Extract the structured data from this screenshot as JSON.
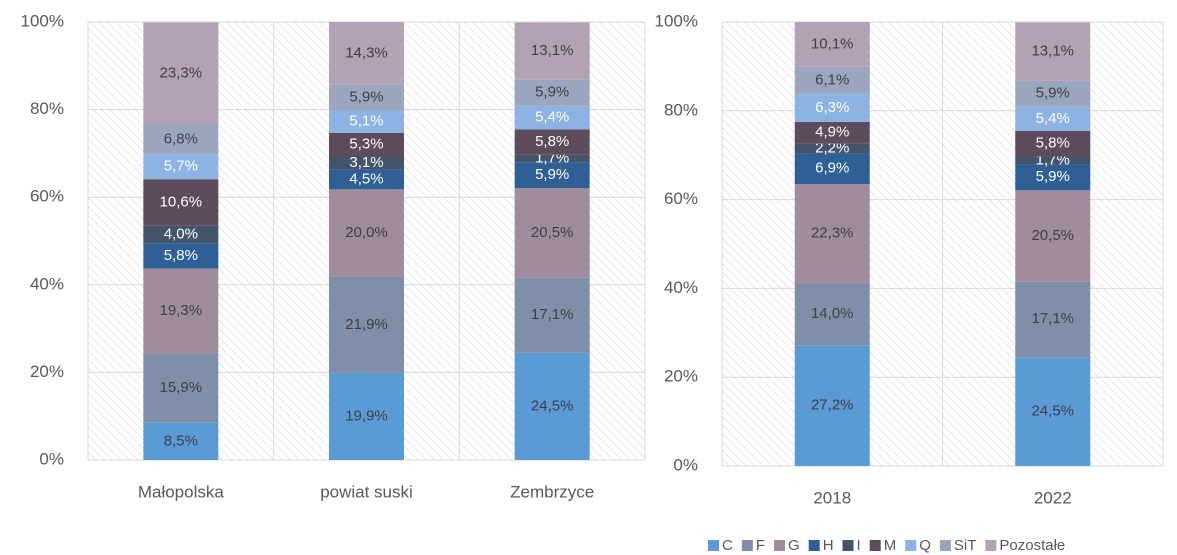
{
  "legend": {
    "position": "bottom-right",
    "items": [
      {
        "name": "C",
        "color": "#5b9bd5",
        "text_color": "#404040"
      },
      {
        "name": "F",
        "color": "#7f8fa9",
        "text_color": "#404040"
      },
      {
        "name": "G",
        "color": "#a08c9c",
        "text_color": "#404040"
      },
      {
        "name": "H",
        "color": "#2e6096",
        "text_color": "#ffffff"
      },
      {
        "name": "I",
        "color": "#44546a",
        "text_color": "#ffffff"
      },
      {
        "name": "M",
        "color": "#5e4b5c",
        "text_color": "#ffffff"
      },
      {
        "name": "Q",
        "color": "#8db3e2",
        "text_color": "#ffffff"
      },
      {
        "name": "SiT",
        "color": "#9aa6bd",
        "text_color": "#404040"
      },
      {
        "name": "Pozostałe",
        "color": "#b3a2b4",
        "text_color": "#404040"
      }
    ]
  },
  "chart_data": [
    {
      "type": "stacked_bar",
      "categories": [
        "Małopolska",
        "powiat suski",
        "Zembrzyce"
      ],
      "ylim": [
        0,
        100
      ],
      "yticks": [
        {
          "value": 0,
          "label": "0%"
        },
        {
          "value": 20,
          "label": "20%"
        },
        {
          "value": 40,
          "label": "40%"
        },
        {
          "value": 60,
          "label": "60%"
        },
        {
          "value": 80,
          "label": "80%"
        },
        {
          "value": 100,
          "label": "100%"
        }
      ],
      "grid": true,
      "series": [
        {
          "values": [
            8.5,
            19.9,
            24.5
          ],
          "value_labels": [
            "8,5%",
            "19,9%",
            "24,5%"
          ]
        },
        {
          "values": [
            15.9,
            21.9,
            17.1
          ],
          "value_labels": [
            "15,9%",
            "21,9%",
            "17,1%"
          ]
        },
        {
          "values": [
            19.3,
            20.0,
            20.5
          ],
          "value_labels": [
            "19,3%",
            "20,0%",
            "20,5%"
          ]
        },
        {
          "values": [
            5.8,
            4.5,
            5.9
          ],
          "value_labels": [
            "5,8%",
            "4,5%",
            "5,9%"
          ]
        },
        {
          "values": [
            4.0,
            3.1,
            1.7
          ],
          "value_labels": [
            "4,0%",
            "3,1%",
            "1,7%"
          ]
        },
        {
          "values": [
            10.6,
            5.3,
            5.8
          ],
          "value_labels": [
            "10,6%",
            "5,3%",
            "5,8%"
          ]
        },
        {
          "values": [
            5.7,
            5.1,
            5.4
          ],
          "value_labels": [
            "5,7%",
            "5,1%",
            "5,4%"
          ]
        },
        {
          "values": [
            6.8,
            5.9,
            5.9
          ],
          "value_labels": [
            "6,8%",
            "5,9%",
            "5,9%"
          ]
        },
        {
          "values": [
            23.3,
            14.3,
            13.1
          ],
          "value_labels": [
            "23,3%",
            "14,3%",
            "13,1%"
          ]
        }
      ]
    },
    {
      "type": "stacked_bar",
      "categories": [
        "2018",
        "2022"
      ],
      "ylim": [
        0,
        100
      ],
      "yticks": [
        {
          "value": 0,
          "label": "0%"
        },
        {
          "value": 20,
          "label": "20%"
        },
        {
          "value": 40,
          "label": "40%"
        },
        {
          "value": 60,
          "label": "60%"
        },
        {
          "value": 80,
          "label": "80%"
        },
        {
          "value": 100,
          "label": "100%"
        }
      ],
      "grid": true,
      "series": [
        {
          "values": [
            27.2,
            24.5
          ],
          "value_labels": [
            "27,2%",
            "24,5%"
          ]
        },
        {
          "values": [
            14.0,
            17.1
          ],
          "value_labels": [
            "14,0%",
            "17,1%"
          ]
        },
        {
          "values": [
            22.3,
            20.5
          ],
          "value_labels": [
            "22,3%",
            "20,5%"
          ]
        },
        {
          "values": [
            6.9,
            5.9
          ],
          "value_labels": [
            "6,9%",
            "5,9%"
          ]
        },
        {
          "values": [
            2.2,
            1.7
          ],
          "value_labels": [
            "2,2%",
            "1,7%"
          ]
        },
        {
          "values": [
            4.9,
            5.8
          ],
          "value_labels": [
            "4,9%",
            "5,8%"
          ]
        },
        {
          "values": [
            6.3,
            5.4
          ],
          "value_labels": [
            "6,3%",
            "5,4%"
          ]
        },
        {
          "values": [
            6.1,
            5.9
          ],
          "value_labels": [
            "6,1%",
            "5,9%"
          ]
        },
        {
          "values": [
            10.1,
            13.1
          ],
          "value_labels": [
            "10,1%",
            "13,1%"
          ]
        }
      ]
    }
  ]
}
